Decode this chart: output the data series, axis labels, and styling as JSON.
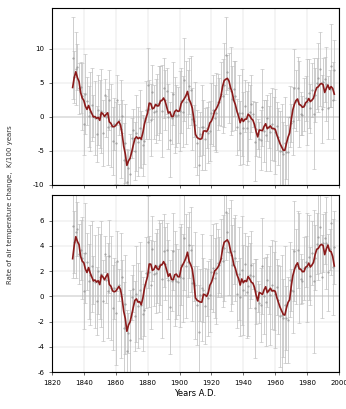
{
  "top_panel": {
    "ylim": [
      -10,
      16
    ],
    "yticks": [
      -10,
      -5,
      0,
      5,
      10
    ],
    "ytick_labels": [
      "-10",
      "-5",
      "0",
      "5",
      "10"
    ]
  },
  "bottom_panel": {
    "ylim": [
      -6,
      8
    ],
    "yticks": [
      -6,
      -4,
      -2,
      0,
      2,
      4,
      6
    ],
    "ytick_labels": [
      "-6",
      "-4",
      "-2",
      "0",
      "2",
      "4",
      "6"
    ]
  },
  "xlim": [
    1820,
    2000
  ],
  "xticks": [
    1820,
    1840,
    1860,
    1880,
    1900,
    1920,
    1940,
    1960,
    1980,
    2000
  ],
  "xlabel": "Years A.D.",
  "ylabel": "Rate of air temperature change,  K/100 years",
  "line_color": "#8B1A1A",
  "error_color": "#BBBBBB",
  "background_color": "#FFFFFF",
  "grid_color": "#AAAAAA",
  "line_width": 1.2,
  "error_width": 0.5,
  "figsize": [
    3.46,
    4.09
  ],
  "dpi": 100
}
